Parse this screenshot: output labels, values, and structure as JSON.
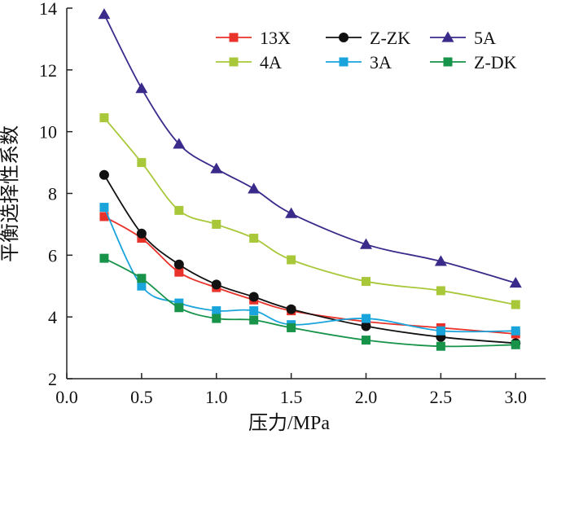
{
  "chart_data": {
    "type": "line",
    "xlabel": "压力/MPa",
    "ylabel": "平衡选择性系数",
    "xlim": [
      0,
      3.2
    ],
    "ylim": [
      2,
      14
    ],
    "xticks": [
      "0.0",
      "0.5",
      "1.0",
      "1.5",
      "2.0",
      "2.5",
      "3.0"
    ],
    "yticks": [
      "2",
      "4",
      "6",
      "8",
      "10",
      "12",
      "14"
    ],
    "grid": false,
    "legend_position": "top-right",
    "x": [
      0.25,
      0.5,
      0.75,
      1.0,
      1.25,
      1.5,
      2.0,
      2.5,
      3.0
    ],
    "series": [
      {
        "name": "13X",
        "marker": "square",
        "color": "#e8322a",
        "values": [
          7.25,
          6.55,
          5.45,
          4.95,
          4.55,
          4.2,
          3.85,
          3.65,
          3.45
        ]
      },
      {
        "name": "Z-ZK",
        "marker": "circle",
        "color": "#111111",
        "values": [
          8.6,
          6.7,
          5.7,
          5.05,
          4.65,
          4.25,
          3.7,
          3.35,
          3.15
        ]
      },
      {
        "name": "5A",
        "marker": "triangle",
        "color": "#3a2a8a",
        "values": [
          13.8,
          11.4,
          9.6,
          8.8,
          8.15,
          7.35,
          6.35,
          5.8,
          5.1
        ]
      },
      {
        "name": "4A",
        "marker": "square",
        "color": "#a8c83a",
        "values": [
          10.45,
          9.0,
          7.45,
          7.0,
          6.55,
          5.85,
          5.15,
          4.85,
          4.4
        ]
      },
      {
        "name": "3A",
        "marker": "square",
        "color": "#1aa4dc",
        "values": [
          7.55,
          5.0,
          4.45,
          4.2,
          4.2,
          3.75,
          3.95,
          3.55,
          3.55
        ]
      },
      {
        "name": "Z-DK",
        "marker": "square",
        "color": "#17934a",
        "values": [
          5.9,
          5.25,
          4.3,
          3.95,
          3.9,
          3.65,
          3.25,
          3.05,
          3.1
        ]
      }
    ]
  }
}
